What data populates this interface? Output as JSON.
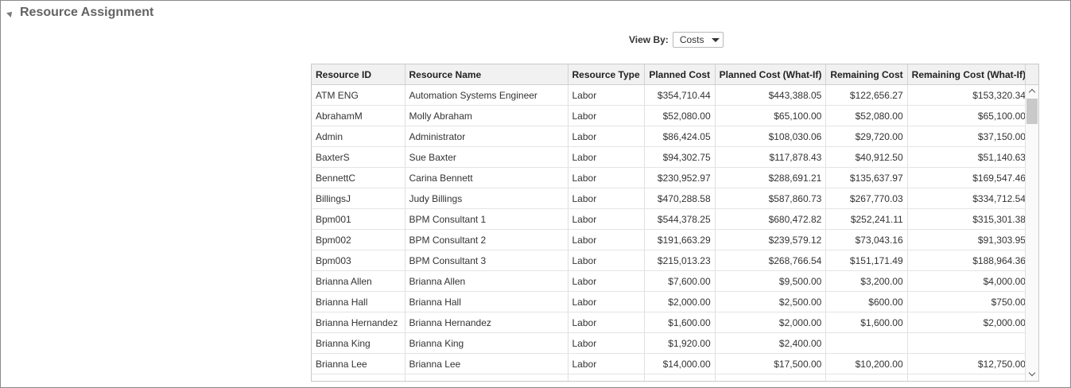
{
  "section": {
    "title": "Resource Assignment"
  },
  "view_by": {
    "label": "View By:",
    "value": "Costs"
  },
  "table": {
    "columns": [
      "Resource ID",
      "Resource Name",
      "Resource Type",
      "Planned Cost",
      "Planned Cost (What-If)",
      "Remaining Cost",
      "Remaining Cost (What-If)"
    ],
    "rows": [
      [
        "ATM ENG",
        "Automation Systems Engineer",
        "Labor",
        "$354,710.44",
        "$443,388.05",
        "$122,656.27",
        "$153,320.34"
      ],
      [
        "AbrahamM",
        "Molly Abraham",
        "Labor",
        "$52,080.00",
        "$65,100.00",
        "$52,080.00",
        "$65,100.00"
      ],
      [
        "Admin",
        "Administrator",
        "Labor",
        "$86,424.05",
        "$108,030.06",
        "$29,720.00",
        "$37,150.00"
      ],
      [
        "BaxterS",
        "Sue Baxter",
        "Labor",
        "$94,302.75",
        "$117,878.43",
        "$40,912.50",
        "$51,140.63"
      ],
      [
        "BennettC",
        "Carina Bennett",
        "Labor",
        "$230,952.97",
        "$288,691.21",
        "$135,637.97",
        "$169,547.46"
      ],
      [
        "BillingsJ",
        "Judy Billings",
        "Labor",
        "$470,288.58",
        "$587,860.73",
        "$267,770.03",
        "$334,712.54"
      ],
      [
        "Bpm001",
        "BPM Consultant 1",
        "Labor",
        "$544,378.25",
        "$680,472.82",
        "$252,241.11",
        "$315,301.38"
      ],
      [
        "Bpm002",
        "BPM Consultant 2",
        "Labor",
        "$191,663.29",
        "$239,579.12",
        "$73,043.16",
        "$91,303.95"
      ],
      [
        "Bpm003",
        "BPM Consultant 3",
        "Labor",
        "$215,013.23",
        "$268,766.54",
        "$151,171.49",
        "$188,964.36"
      ],
      [
        "Brianna Allen",
        "Brianna Allen",
        "Labor",
        "$7,600.00",
        "$9,500.00",
        "$3,200.00",
        "$4,000.00"
      ],
      [
        "Brianna Hall",
        "Brianna Hall",
        "Labor",
        "$2,000.00",
        "$2,500.00",
        "$600.00",
        "$750.00"
      ],
      [
        "Brianna Hernandez",
        "Brianna Hernandez",
        "Labor",
        "$1,600.00",
        "$2,000.00",
        "$1,600.00",
        "$2,000.00"
      ],
      [
        "Brianna King",
        "Brianna King",
        "Labor",
        "$1,920.00",
        "$2,400.00",
        "",
        ""
      ],
      [
        "Brianna Lee",
        "Brianna Lee",
        "Labor",
        "$14,000.00",
        "$17,500.00",
        "$10,200.00",
        "$12,750.00"
      ],
      [
        "",
        "",
        "",
        "",
        "",
        "",
        ""
      ]
    ]
  }
}
